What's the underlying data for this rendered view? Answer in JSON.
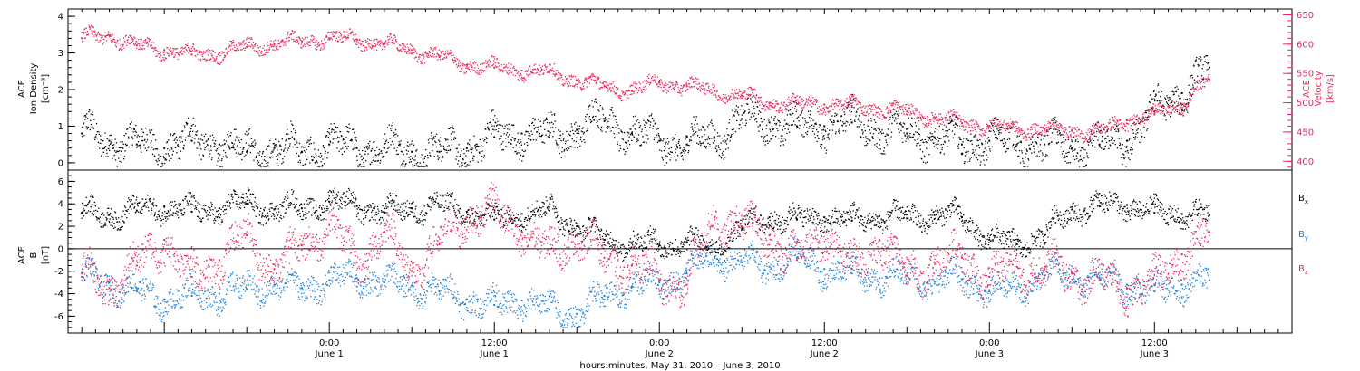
{
  "chart_data": [
    {
      "type": "scatter",
      "panel": "plasma",
      "ylabel_left": [
        "ACE",
        "Ion Density",
        "[cm⁻³]"
      ],
      "ylabel_right": [
        "ACE",
        "Velocity",
        "[km/s]"
      ],
      "ylim_left": [
        -0.2,
        4.2
      ],
      "ylim_right": [
        385,
        660
      ],
      "yticks_left": [
        "0",
        "1",
        "2",
        "3",
        "4"
      ],
      "yticks_right": [
        "400",
        "450",
        "500",
        "550",
        "600",
        "650"
      ],
      "series": [
        {
          "name": "Ion Density",
          "color": "#000000",
          "axis": "left",
          "x_hours": [
            -18,
            -16,
            -14,
            -12,
            -10,
            -8,
            -6,
            -4,
            -2,
            0,
            2,
            4,
            6,
            8,
            10,
            12,
            14,
            16,
            18,
            20,
            22,
            24,
            26,
            28,
            30,
            32,
            34,
            36,
            38,
            40,
            42,
            44,
            46,
            48,
            50,
            52,
            54,
            56,
            58,
            60,
            62,
            64
          ],
          "values": [
            0.8,
            0.6,
            0.5,
            0.4,
            0.6,
            0.5,
            0.3,
            0.4,
            0.3,
            0.5,
            0.4,
            0.4,
            0.3,
            0.3,
            0.4,
            0.7,
            0.8,
            0.7,
            0.9,
            1.2,
            0.8,
            0.6,
            0.5,
            0.7,
            1.2,
            1.1,
            1.0,
            1.0,
            1.1,
            0.9,
            0.8,
            0.7,
            0.5,
            0.6,
            0.5,
            0.5,
            0.4,
            0.5,
            0.6,
            1.4,
            1.9,
            2.6
          ]
        },
        {
          "name": "Velocity",
          "color": "#e8285a",
          "axis": "right",
          "x_hours": [
            -18,
            -16,
            -14,
            -12,
            -10,
            -8,
            -6,
            -4,
            -2,
            0,
            2,
            4,
            6,
            8,
            10,
            12,
            14,
            16,
            18,
            20,
            22,
            24,
            26,
            28,
            30,
            32,
            34,
            36,
            38,
            40,
            42,
            44,
            46,
            48,
            50,
            52,
            54,
            56,
            58,
            60,
            62,
            64
          ],
          "values": [
            610,
            615,
            598,
            590,
            582,
            585,
            595,
            600,
            605,
            610,
            608,
            600,
            590,
            578,
            565,
            560,
            555,
            552,
            538,
            528,
            520,
            535,
            528,
            520,
            512,
            500,
            498,
            497,
            495,
            490,
            485,
            475,
            465,
            460,
            456,
            455,
            453,
            450,
            470,
            480,
            498,
            540
          ]
        }
      ]
    },
    {
      "type": "scatter",
      "panel": "field",
      "ylabel": [
        "ACE",
        "B",
        "[nT]"
      ],
      "ylim": [
        -7.5,
        7
      ],
      "yticks": [
        "-6",
        "-4",
        "-2",
        "0",
        "2",
        "4",
        "6"
      ],
      "series": [
        {
          "name": "Bx",
          "label_main": "B",
          "label_sub": "x",
          "color": "#000000",
          "x_hours": [
            -18,
            -16,
            -14,
            -12,
            -10,
            -8,
            -6,
            -4,
            -2,
            0,
            2,
            4,
            6,
            8,
            10,
            12,
            14,
            16,
            18,
            20,
            22,
            24,
            26,
            28,
            30,
            32,
            34,
            36,
            38,
            40,
            42,
            44,
            46,
            48,
            50,
            52,
            54,
            56,
            58,
            60,
            62,
            64
          ],
          "values": [
            3.2,
            3.0,
            3.4,
            3.8,
            3.3,
            3.6,
            4.0,
            3.5,
            3.6,
            4.2,
            3.8,
            3.2,
            3.6,
            3.9,
            3.3,
            2.6,
            3.1,
            3.4,
            2.0,
            0.8,
            0.5,
            0.3,
            0.6,
            0.0,
            1.8,
            2.8,
            2.6,
            2.8,
            2.5,
            2.9,
            2.7,
            3.0,
            2.8,
            0.8,
            0.4,
            1.2,
            3.5,
            3.8,
            3.9,
            3.2,
            3.1,
            3.0
          ]
        },
        {
          "name": "By",
          "label_main": "B",
          "label_sub": "y",
          "color": "#1e7fd8",
          "x_hours": [
            -18,
            -16,
            -14,
            -12,
            -10,
            -8,
            -6,
            -4,
            -2,
            0,
            2,
            4,
            6,
            8,
            10,
            12,
            14,
            16,
            18,
            20,
            22,
            24,
            26,
            28,
            30,
            32,
            34,
            36,
            38,
            40,
            42,
            44,
            46,
            48,
            50,
            52,
            54,
            56,
            58,
            60,
            62,
            64
          ],
          "values": [
            -2.5,
            -3.0,
            -3.8,
            -4.5,
            -4.2,
            -4.0,
            -3.6,
            -3.2,
            -3.5,
            -2.8,
            -2.6,
            -3.0,
            -3.3,
            -3.8,
            -4.5,
            -5.0,
            -4.6,
            -5.4,
            -5.8,
            -4.2,
            -3.4,
            -3.0,
            -2.2,
            -0.8,
            -1.2,
            -1.6,
            -0.8,
            -1.8,
            -2.2,
            -2.6,
            -2.4,
            -2.9,
            -2.7,
            -3.8,
            -3.6,
            -2.4,
            -2.2,
            -2.6,
            -3.2,
            -3.8,
            -3.2,
            -2.8
          ]
        },
        {
          "name": "Bz",
          "label_main": "B",
          "label_sub": "z",
          "color": "#e8285a",
          "x_hours": [
            -18,
            -16,
            -14,
            -12,
            -10,
            -8,
            -6,
            -4,
            -2,
            0,
            2,
            4,
            6,
            8,
            10,
            12,
            14,
            16,
            18,
            20,
            22,
            24,
            26,
            28,
            30,
            32,
            34,
            36,
            38,
            40,
            42,
            44,
            46,
            48,
            50,
            52,
            54,
            56,
            58,
            60,
            62,
            64
          ],
          "values": [
            -2.2,
            -3.5,
            -1.5,
            0.8,
            -2.5,
            -1.0,
            1.2,
            -1.8,
            0.3,
            2.2,
            -1.2,
            1.5,
            -2.0,
            0.4,
            2.8,
            3.5,
            1.5,
            -0.5,
            1.2,
            -0.8,
            -1.5,
            -2.8,
            -3.2,
            2.8,
            2.0,
            1.2,
            -1.0,
            1.5,
            -1.8,
            0.8,
            -2.4,
            -1.2,
            -0.8,
            -2.5,
            -1.6,
            -1.8,
            -2.2,
            -2.8,
            -3.5,
            -3.2,
            -0.5,
            1.5
          ]
        }
      ]
    }
  ],
  "x_axis": {
    "range_hours": [
      -19,
      70
    ],
    "ticks": [
      {
        "hours": 0,
        "time": "0:00",
        "date": "June 1"
      },
      {
        "hours": 12,
        "time": "12:00",
        "date": "June 1"
      },
      {
        "hours": 24,
        "time": "0:00",
        "date": "June 2"
      },
      {
        "hours": 36,
        "time": "12:00",
        "date": "June 2"
      },
      {
        "hours": 48,
        "time": "0:00",
        "date": "June 3"
      },
      {
        "hours": 60,
        "time": "12:00",
        "date": "June 3"
      }
    ],
    "label": "hours:minutes, May 31, 2010 – June  3, 2010"
  }
}
